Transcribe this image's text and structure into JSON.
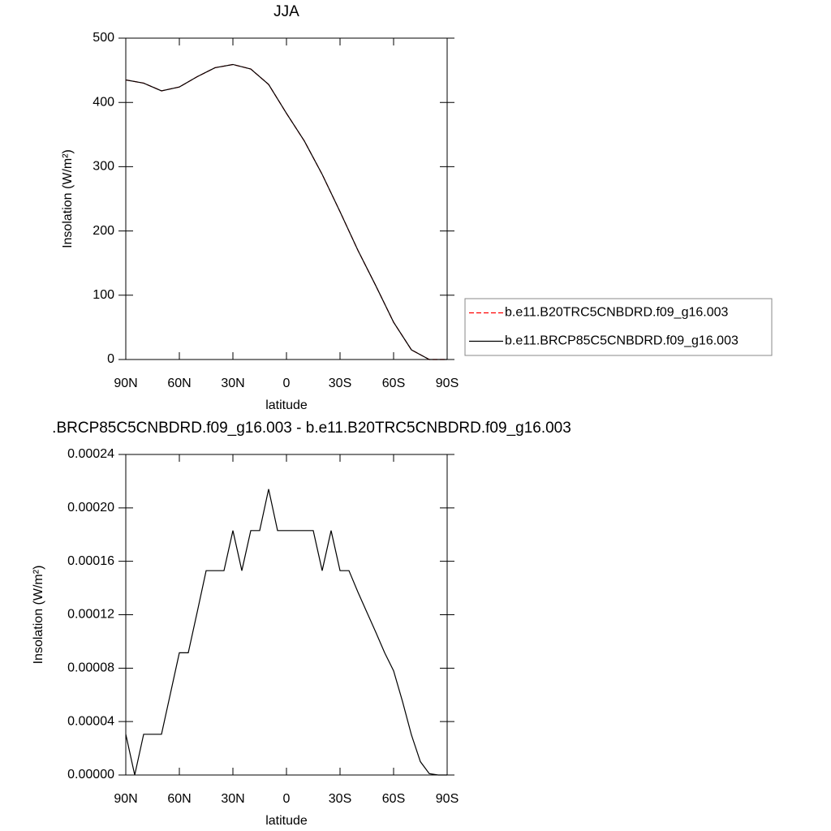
{
  "chart_data": [
    {
      "type": "line",
      "title": "JJA",
      "xlabel": "latitude",
      "ylabel": "Insolation (W/m²)",
      "x": [
        90,
        80,
        70,
        60,
        50,
        40,
        30,
        20,
        10,
        0,
        -10,
        -20,
        -30,
        -40,
        -50,
        -60,
        -70,
        -80,
        -90
      ],
      "xlim": [
        90,
        -90
      ],
      "xticks": [
        {
          "value": 90,
          "label": "90N"
        },
        {
          "value": 60,
          "label": "60N"
        },
        {
          "value": 30,
          "label": "30N"
        },
        0,
        {
          "value": -30,
          "label": "30S"
        },
        {
          "value": -60,
          "label": "60S"
        },
        {
          "value": -90,
          "label": "90S"
        }
      ],
      "ylim": [
        0,
        500
      ],
      "yticks": [
        0,
        100,
        200,
        300,
        400,
        500
      ],
      "series": [
        {
          "name": "b.e11.B20TRC5CNBDRD.f09_g16.003",
          "color": "#ff0000",
          "dashed": true,
          "values": [
            435,
            430,
            418,
            424,
            440,
            454,
            459,
            452,
            428,
            383,
            340,
            288,
            230,
            170,
            115,
            58,
            15,
            0,
            0
          ]
        },
        {
          "name": "b.e11.BRCP85C5CNBDRD.f09_g16.003",
          "color": "#000000",
          "dashed": false,
          "values": [
            435,
            430,
            418,
            424,
            440,
            454,
            459,
            452,
            428,
            383,
            340,
            288,
            230,
            170,
            115,
            58,
            15,
            0,
            0
          ]
        }
      ]
    },
    {
      "type": "line",
      "title": ".BRCP85C5CNBDRD.f09_g16.003 - b.e11.B20TRC5CNBDRD.f09_g16.003",
      "xlabel": "latitude",
      "ylabel": "Insolation (W/m²)",
      "x": [
        90,
        85,
        80,
        75,
        70,
        65,
        60,
        55,
        50,
        45,
        40,
        35,
        30,
        25,
        20,
        15,
        10,
        5,
        0,
        -5,
        -10,
        -15,
        -20,
        -25,
        -30,
        -35,
        -40,
        -45,
        -50,
        -55,
        -60,
        -65,
        -70,
        -75,
        -80,
        -85,
        -90
      ],
      "values": [
        3.05e-05,
        0,
        3.05e-05,
        3.05e-05,
        3.05e-05,
        6.1e-05,
        9.15e-05,
        9.15e-05,
        0.000122,
        0.000153,
        0.000153,
        0.000153,
        0.000183,
        0.000153,
        0.000183,
        0.000183,
        0.000214,
        0.000183,
        0.000183,
        0.000183,
        0.000183,
        0.000183,
        0.000153,
        0.000183,
        0.000153,
        0.000153,
        0.000137,
        0.000122,
        0.000107,
        9.15e-05,
        7.8e-05,
        5.5e-05,
        3e-05,
        1e-05,
        1e-06,
        0,
        0
      ],
      "color": "#000000",
      "xlim": [
        90,
        -90
      ],
      "xticks": [
        {
          "value": 90,
          "label": "90N"
        },
        {
          "value": 60,
          "label": "60N"
        },
        {
          "value": 30,
          "label": "30N"
        },
        0,
        {
          "value": -30,
          "label": "30S"
        },
        {
          "value": -60,
          "label": "60S"
        },
        {
          "value": -90,
          "label": "90S"
        }
      ],
      "ylim": [
        0,
        0.00024
      ],
      "yticks": [
        {
          "value": 0,
          "label": "0.00000"
        },
        {
          "value": 4e-05,
          "label": "0.00004"
        },
        {
          "value": 8e-05,
          "label": "0.00008"
        },
        {
          "value": 0.00012,
          "label": "0.00012"
        },
        {
          "value": 0.00016,
          "label": "0.00016"
        },
        {
          "value": 0.0002,
          "label": "0.00020"
        },
        {
          "value": 0.00024,
          "label": "0.00024"
        }
      ]
    }
  ]
}
